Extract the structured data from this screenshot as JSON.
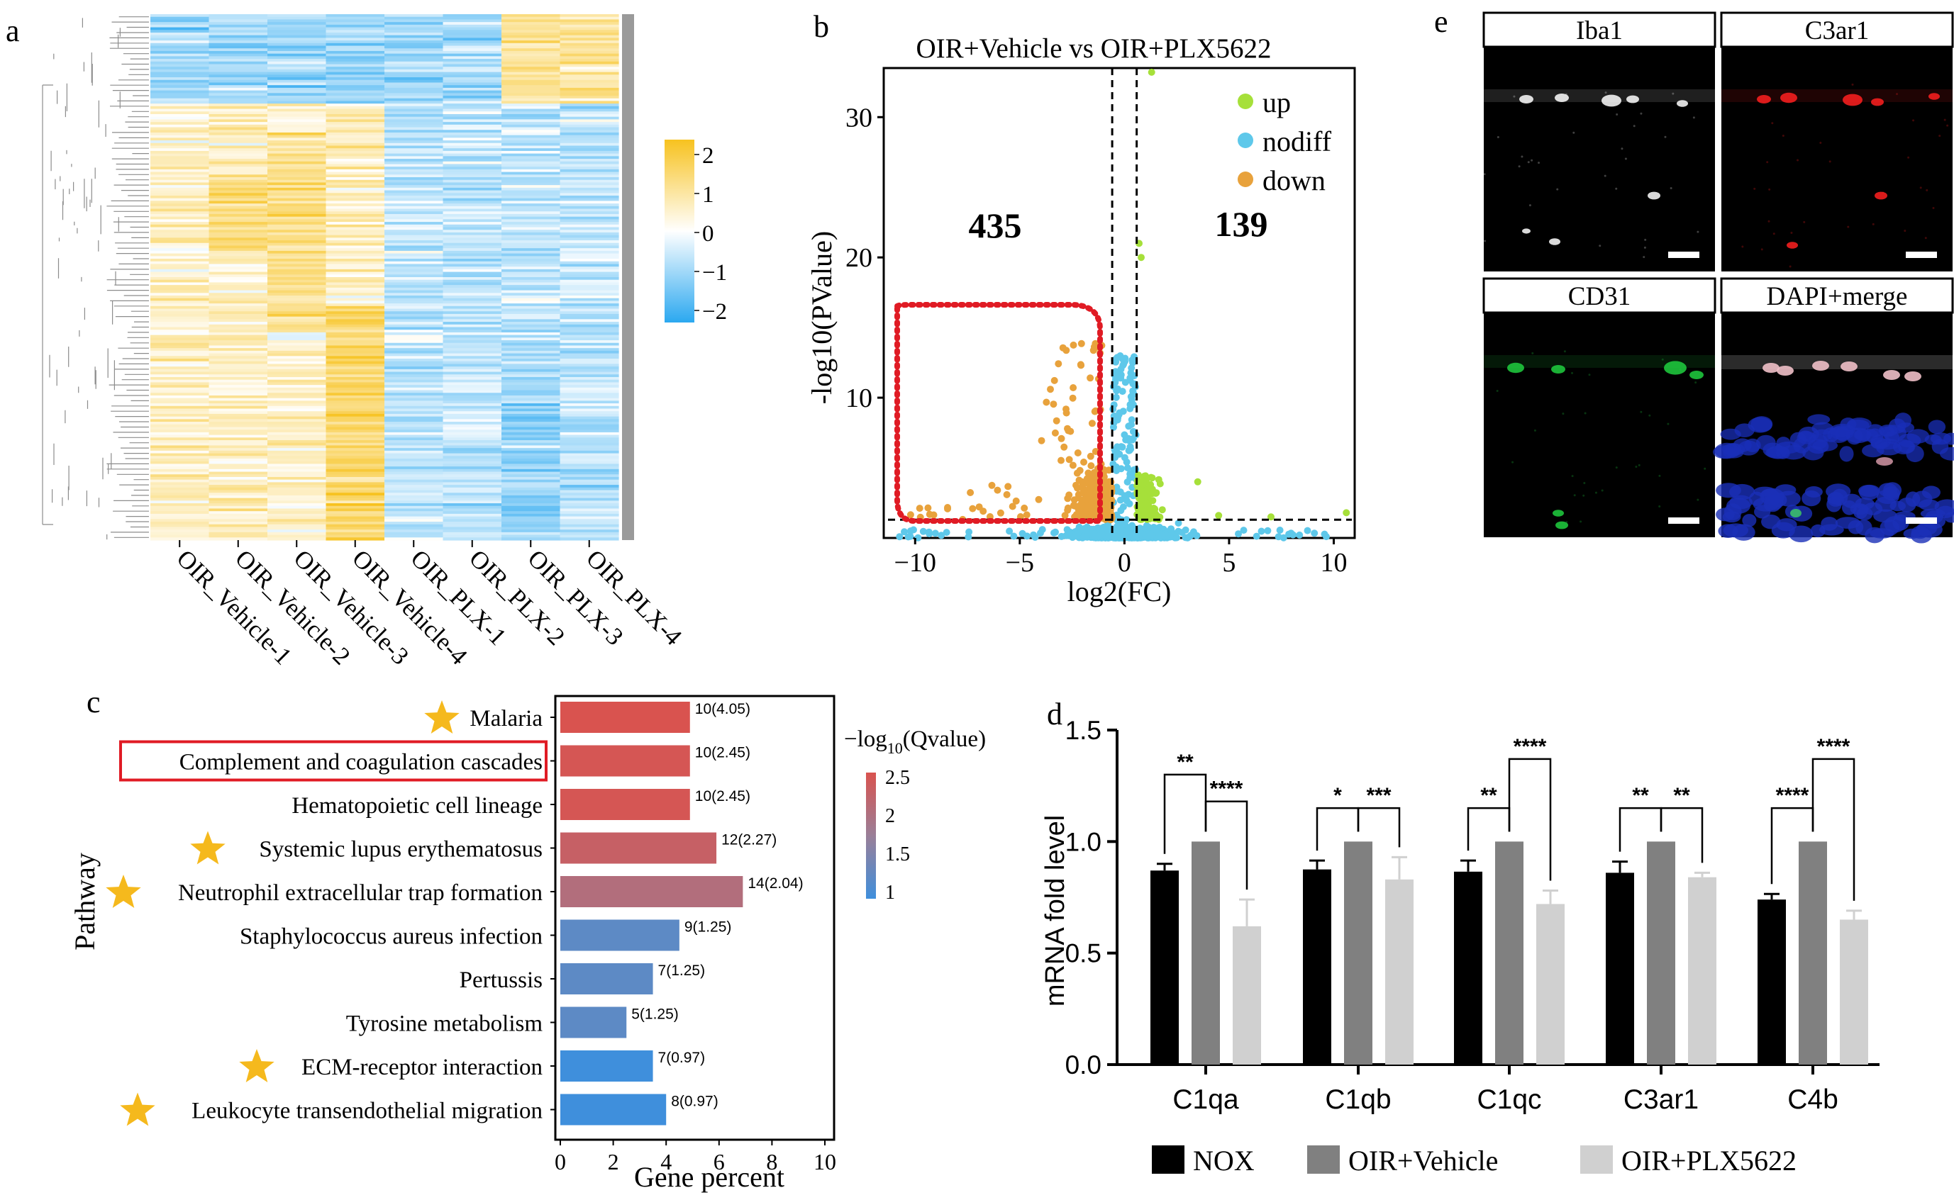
{
  "panels": {
    "a": {
      "letter": "a"
    },
    "b": {
      "letter": "b"
    },
    "c": {
      "letter": "c"
    },
    "d": {
      "letter": "d"
    },
    "e": {
      "letter": "e"
    }
  },
  "colors": {
    "heat_high": "#F7C21F",
    "heat_mid": "#FFFFFF",
    "heat_low": "#2BA8F0",
    "up": "#A6E03A",
    "nodiff": "#5EC8EA",
    "down": "#E8A23C",
    "highlight_box": "#E01B24",
    "nox": "#000000",
    "oir_vehicle": "#808080",
    "oir_plx": "#D0D0D0",
    "star": "#F5B91D",
    "q_high": "#D9534F",
    "q_low": "#3F8FDC"
  },
  "chart_data": [
    {
      "panel": "a",
      "type": "heatmap",
      "columns": [
        "OIR_Vehicle-1",
        "OIR_Vehicle-2",
        "OIR_Vehicle-3",
        "OIR_Vehicle-4",
        "OIR_PLX-1",
        "OIR_PLX-2",
        "OIR_PLX-3",
        "OIR_PLX-4"
      ],
      "color_scale": {
        "ticks": [
          "2",
          "1",
          "0",
          "−1",
          "−2"
        ],
        "range": [
          -2,
          2
        ]
      }
    },
    {
      "panel": "b",
      "type": "scatter",
      "title": "OIR+Vehicle vs OIR+PLX5622",
      "xlabel": "log2(FC)",
      "ylabel": "-log10(PValue)",
      "xlim": [
        -11.5,
        11
      ],
      "ylim": [
        0,
        33.5
      ],
      "xticks": [
        "−10",
        "−5",
        "0",
        "5",
        "10"
      ],
      "yticks": [
        "10",
        "20",
        "30"
      ],
      "x_thresholds": [
        -0.585,
        0.585
      ],
      "y_threshold": 1.3,
      "legend": [
        "up",
        "nodiff",
        "down"
      ],
      "down_count": "435",
      "up_count": "139"
    },
    {
      "panel": "c",
      "type": "bar",
      "orientation": "horizontal",
      "ylabel": "Pathway",
      "xlabel": "Gene percent",
      "xlim": [
        0,
        10
      ],
      "xticks": [
        "0",
        "2",
        "4",
        "6",
        "8",
        "10"
      ],
      "legend_title": "−log",
      "legend_title_sub": "10",
      "legend_title_rest": "(Qvalue)",
      "legend_ticks": [
        "2.5",
        "2",
        "1.5",
        "1"
      ],
      "categories": [
        "Malaria",
        "Complement and coagulation cascades",
        "Hematopoietic cell lineage",
        "Systemic lupus erythematosus",
        "Neutrophil extracellular trap formation",
        "Staphylococcus aureus infection",
        "Pertussis",
        "Tyrosine metabolism",
        "ECM-receptor interaction",
        "Leukocyte transendothelial migration"
      ],
      "values": [
        4.9,
        4.9,
        4.9,
        5.9,
        6.9,
        4.5,
        3.5,
        2.5,
        3.5,
        4.0
      ],
      "qvalues": [
        4.05,
        2.45,
        2.45,
        2.27,
        2.04,
        1.25,
        1.25,
        1.25,
        0.97,
        0.97
      ],
      "bar_labels": [
        "10(4.05)",
        "10(2.45)",
        "10(2.45)",
        "12(2.27)",
        "14(2.04)",
        "9(1.25)",
        "7(1.25)",
        "5(1.25)",
        "7(0.97)",
        "8(0.97)"
      ],
      "starred": [
        true,
        false,
        false,
        true,
        true,
        false,
        false,
        false,
        true,
        true
      ],
      "boxed": [
        false,
        true,
        false,
        false,
        false,
        false,
        false,
        false,
        false,
        false
      ]
    },
    {
      "panel": "d",
      "type": "bar",
      "ylabel": "mRNA fold level",
      "ylim": [
        0,
        1.5
      ],
      "yticks": [
        "0.0",
        "0.5",
        "1.0",
        "1.5"
      ],
      "categories": [
        "C1qa",
        "C1qb",
        "C1qc",
        "C3ar1",
        "C4b"
      ],
      "series": [
        {
          "name": "NOX",
          "values": [
            0.87,
            0.875,
            0.865,
            0.86,
            0.74
          ],
          "errors": [
            0.03,
            0.04,
            0.05,
            0.05,
            0.025
          ]
        },
        {
          "name": "OIR+Vehicle",
          "values": [
            1.0,
            1.0,
            1.0,
            1.0,
            1.0
          ],
          "errors": [
            0,
            0,
            0,
            0,
            0
          ]
        },
        {
          "name": "OIR+PLX5622",
          "values": [
            0.62,
            0.83,
            0.72,
            0.84,
            0.65
          ],
          "errors": [
            0.12,
            0.1,
            0.06,
            0.02,
            0.04
          ]
        }
      ],
      "significance": [
        {
          "cat": 0,
          "a": 0,
          "b": 1,
          "label": "**"
        },
        {
          "cat": 0,
          "a": 1,
          "b": 2,
          "label": "****"
        },
        {
          "cat": 1,
          "a": 0,
          "b": 1,
          "label": "*"
        },
        {
          "cat": 1,
          "a": 1,
          "b": 2,
          "label": "***"
        },
        {
          "cat": 2,
          "a": 0,
          "b": 1,
          "label": "**"
        },
        {
          "cat": 2,
          "a": 1,
          "b": 2,
          "label": "****"
        },
        {
          "cat": 3,
          "a": 0,
          "b": 1,
          "label": "**"
        },
        {
          "cat": 3,
          "a": 1,
          "b": 2,
          "label": "**"
        },
        {
          "cat": 4,
          "a": 0,
          "b": 1,
          "label": "****"
        },
        {
          "cat": 4,
          "a": 1,
          "b": 2,
          "label": "****"
        }
      ]
    },
    {
      "panel": "e",
      "type": "table",
      "images": [
        "Iba1",
        "C3ar1",
        "CD31",
        "DAPI+merge"
      ]
    }
  ]
}
